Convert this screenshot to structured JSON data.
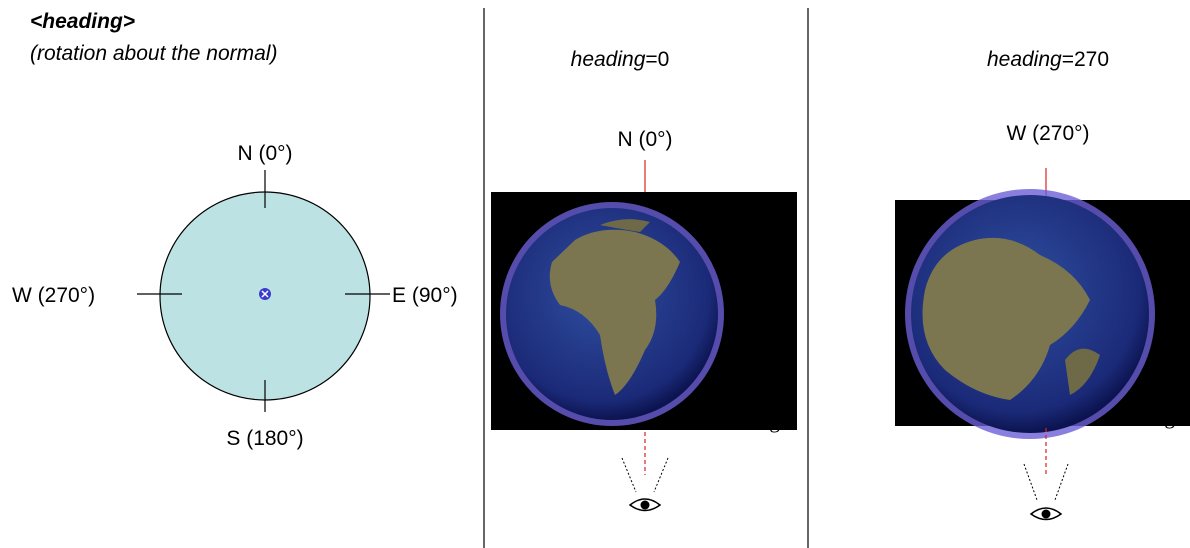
{
  "left": {
    "title": "<heading>",
    "subtitle": "(rotation about the normal)",
    "labels": {
      "north": "N (0°)",
      "east": "E (90°)",
      "south": "S (180°)",
      "west": "W (270°)"
    }
  },
  "panels": [
    {
      "param": "heading",
      "equals": "=0",
      "direction": "N (0°)",
      "watermark": "Google"
    },
    {
      "param": "heading",
      "equals": "=270",
      "direction": "W (270°)",
      "watermark": "Google"
    }
  ]
}
